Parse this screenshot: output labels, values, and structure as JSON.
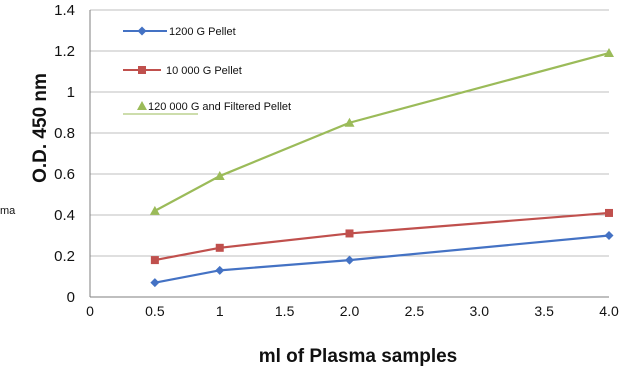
{
  "chart_data": {
    "type": "line",
    "title": "",
    "xlabel": "ml of Plasma samples",
    "ylabel": "O.D. 450 nm",
    "xlim": [
      0,
      4.0
    ],
    "ylim": [
      0,
      1.4
    ],
    "x_ticks": [
      "0",
      "0.5",
      "1",
      "1.5",
      "2.0",
      "2.5",
      "3.0",
      "3.5",
      "4.0"
    ],
    "y_ticks": [
      "0",
      "0.2",
      "0.4",
      "0.6",
      "0.8",
      "1",
      "1.2",
      "1.4"
    ],
    "grid": true,
    "legend_position": "top-left",
    "series": [
      {
        "name": "1200 G Pellet",
        "color": "#4472C4",
        "marker": "diamond",
        "x": [
          0.5,
          1.0,
          2.0,
          4.0
        ],
        "y": [
          0.07,
          0.13,
          0.18,
          0.3
        ]
      },
      {
        "name": "10 000 G Pellet",
        "color": "#C0504D",
        "marker": "square",
        "x": [
          0.5,
          1.0,
          2.0,
          4.0
        ],
        "y": [
          0.18,
          0.24,
          0.31,
          0.41
        ]
      },
      {
        "name": "120 000 G and Filtered Pellet",
        "color": "#9BBB59",
        "marker": "triangle",
        "x": [
          0.5,
          1.0,
          2.0,
          4.0
        ],
        "y": [
          0.42,
          0.59,
          0.85,
          1.19
        ]
      }
    ]
  },
  "edge_label": "ma"
}
